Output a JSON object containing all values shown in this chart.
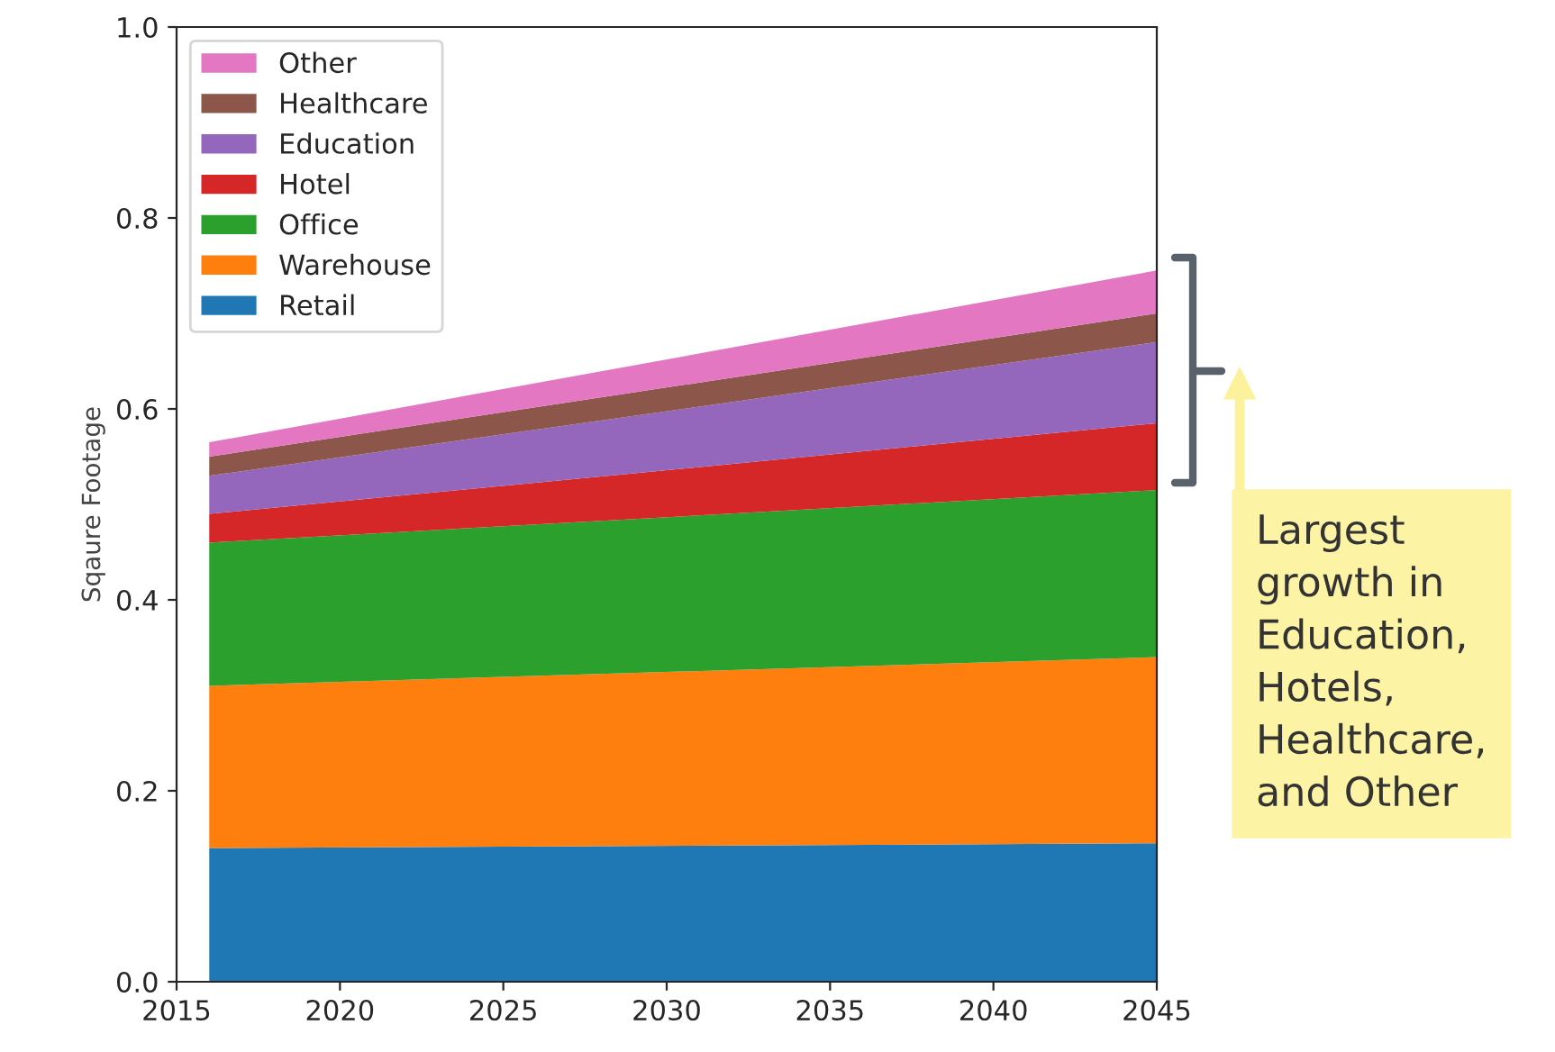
{
  "chart_data": {
    "type": "area",
    "stacked": true,
    "ylabel": "Sqaure Footage",
    "x": [
      2016,
      2045
    ],
    "series": [
      {
        "name": "Retail",
        "color": "#1f77b4",
        "values": [
          0.14,
          0.145
        ]
      },
      {
        "name": "Warehouse",
        "color": "#ff7f0e",
        "values": [
          0.17,
          0.195
        ]
      },
      {
        "name": "Office",
        "color": "#2ca02c",
        "values": [
          0.15,
          0.175
        ]
      },
      {
        "name": "Hotel",
        "color": "#d62728",
        "values": [
          0.03,
          0.07
        ]
      },
      {
        "name": "Education",
        "color": "#9467bd",
        "values": [
          0.04,
          0.085
        ]
      },
      {
        "name": "Healthcare",
        "color": "#8c564b",
        "values": [
          0.02,
          0.03
        ]
      },
      {
        "name": "Other",
        "color": "#e377c2",
        "values": [
          0.015,
          0.045
        ]
      }
    ],
    "xlim": [
      2015,
      2045
    ],
    "xticks": [
      2015,
      2020,
      2025,
      2030,
      2035,
      2040,
      2045
    ],
    "ylim": [
      0,
      1.0
    ],
    "yticks": [
      {
        "value": 0,
        "label": "0.0"
      },
      {
        "value": 0.2,
        "label": "0.2"
      },
      {
        "value": 0.4,
        "label": "0.4"
      },
      {
        "value": 0.6,
        "label": "0.6"
      },
      {
        "value": 0.8,
        "label": "0.8"
      },
      {
        "value": 1.0,
        "label": "1.0"
      }
    ],
    "grid": false,
    "legend": "top left",
    "annotations": [
      "Largest growth in Education, Hotels, Healthcare, and Other"
    ]
  }
}
